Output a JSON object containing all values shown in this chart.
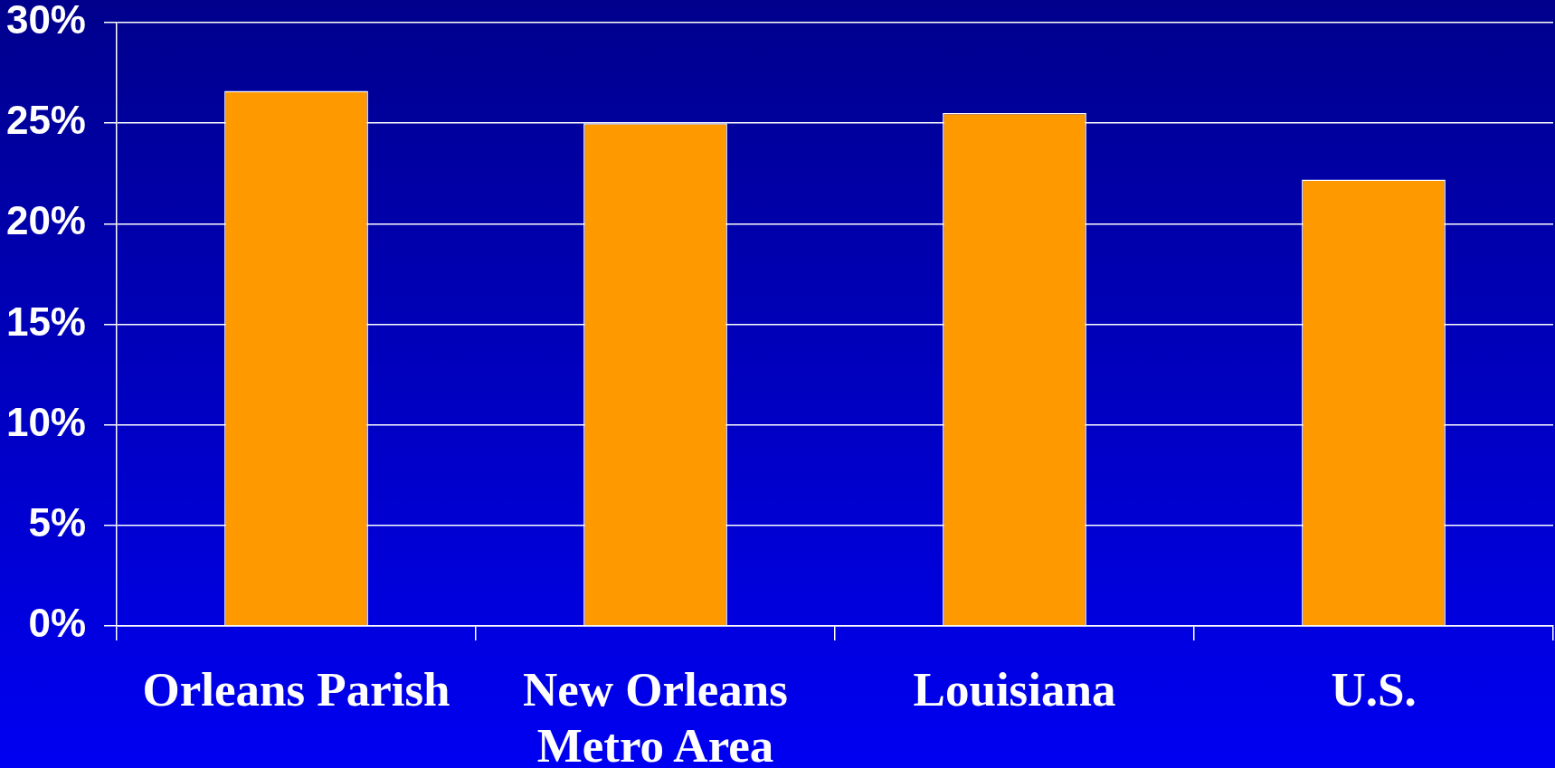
{
  "chart_data": {
    "type": "bar",
    "categories": [
      "Orleans Parish",
      "New Orleans Metro Area",
      "Louisiana",
      "U.S."
    ],
    "values": [
      26.6,
      25.0,
      25.5,
      22.2
    ],
    "color": "#ff9900",
    "ylim": [
      0,
      30
    ],
    "yticks": [
      {
        "value": 0,
        "label": "0%"
      },
      {
        "value": 5,
        "label": "5%"
      },
      {
        "value": 10,
        "label": "10%"
      },
      {
        "value": 15,
        "label": "15%"
      },
      {
        "value": 20,
        "label": "20%"
      },
      {
        "value": 25,
        "label": "25%"
      },
      {
        "value": 30,
        "label": "30%"
      }
    ],
    "grid": "y"
  }
}
